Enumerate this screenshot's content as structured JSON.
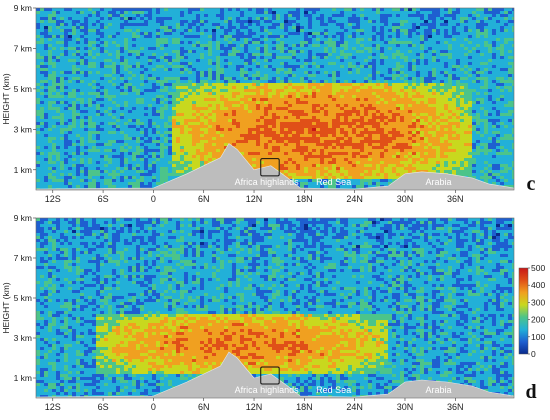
{
  "chart_data": [
    {
      "type": "heatmap",
      "panel_label": "c",
      "ylabel": "HEIGHT (km)",
      "y_ticks": [
        "1 km",
        "3 km",
        "5 km",
        "7 km",
        "9 km"
      ],
      "y_tick_values": [
        1,
        3,
        5,
        7,
        9
      ],
      "ylim": [
        0,
        9
      ],
      "x_ticks": [
        "12S",
        "6S",
        "0",
        "6N",
        "12N",
        "18N",
        "24N",
        "30N",
        "36N"
      ],
      "x_tick_values": [
        -12,
        -6,
        0,
        6,
        12,
        18,
        24,
        30,
        36
      ],
      "xlim": [
        -14,
        43
      ],
      "annotations": [
        "Africa highlands",
        "Red Sea",
        "Arabia"
      ],
      "dust_layer": {
        "lat_start": 2,
        "lat_end": 38,
        "base_km": 0.5,
        "top_km": 5.3,
        "peak_value": 380
      },
      "terrain_km": [
        [
          -14,
          0.05
        ],
        [
          0,
          0.1
        ],
        [
          4,
          0.8
        ],
        [
          6,
          1.2
        ],
        [
          8,
          1.6
        ],
        [
          9,
          2.3
        ],
        [
          10,
          2.0
        ],
        [
          11,
          1.5
        ],
        [
          12,
          1.0
        ],
        [
          14,
          1.2
        ],
        [
          16,
          0.6
        ],
        [
          17.5,
          0.1
        ],
        [
          24,
          0.05
        ],
        [
          28,
          0.2
        ],
        [
          30,
          0.8
        ],
        [
          32,
          0.9
        ],
        [
          35,
          0.8
        ],
        [
          38,
          0.6
        ],
        [
          40,
          0.3
        ],
        [
          43,
          0.1
        ]
      ]
    },
    {
      "type": "heatmap",
      "panel_label": "d",
      "ylabel": "HEIGHT (km)",
      "y_ticks": [
        "1 km",
        "3 km",
        "5 km",
        "7 km",
        "9 km"
      ],
      "y_tick_values": [
        1,
        3,
        5,
        7,
        9
      ],
      "ylim": [
        0,
        9
      ],
      "x_ticks": [
        "12S",
        "6S",
        "0",
        "6N",
        "12N",
        "18N",
        "24N",
        "30N",
        "36N"
      ],
      "x_tick_values": [
        -12,
        -6,
        0,
        6,
        12,
        18,
        24,
        30,
        36
      ],
      "xlim": [
        -14,
        43
      ],
      "annotations": [
        "Africa highlands",
        "Red Sea",
        "Arabia"
      ],
      "dust_layer": {
        "lat_start": -7,
        "lat_end": 28,
        "base_km": 1.2,
        "top_km": 4.2,
        "peak_value": 360
      },
      "terrain_km": [
        [
          -14,
          0.05
        ],
        [
          0,
          0.1
        ],
        [
          4,
          0.8
        ],
        [
          6,
          1.2
        ],
        [
          8,
          1.6
        ],
        [
          9,
          2.3
        ],
        [
          10,
          2.0
        ],
        [
          11,
          1.5
        ],
        [
          12,
          1.0
        ],
        [
          14,
          1.2
        ],
        [
          16,
          0.6
        ],
        [
          17.5,
          0.1
        ],
        [
          24,
          0.05
        ],
        [
          28,
          0.2
        ],
        [
          30,
          0.8
        ],
        [
          32,
          0.9
        ],
        [
          35,
          0.8
        ],
        [
          38,
          0.6
        ],
        [
          40,
          0.3
        ],
        [
          43,
          0.1
        ]
      ]
    }
  ],
  "colorbar": {
    "ticks": [
      "500",
      "400",
      "300",
      "200",
      "100",
      "0"
    ],
    "values": [
      500,
      400,
      300,
      200,
      100,
      0
    ],
    "colors": [
      "#0a2a8c",
      "#1e5fd0",
      "#22b0d8",
      "#4cc48a",
      "#c8d81e",
      "#f0a020",
      "#e05018",
      "#c81818"
    ]
  }
}
